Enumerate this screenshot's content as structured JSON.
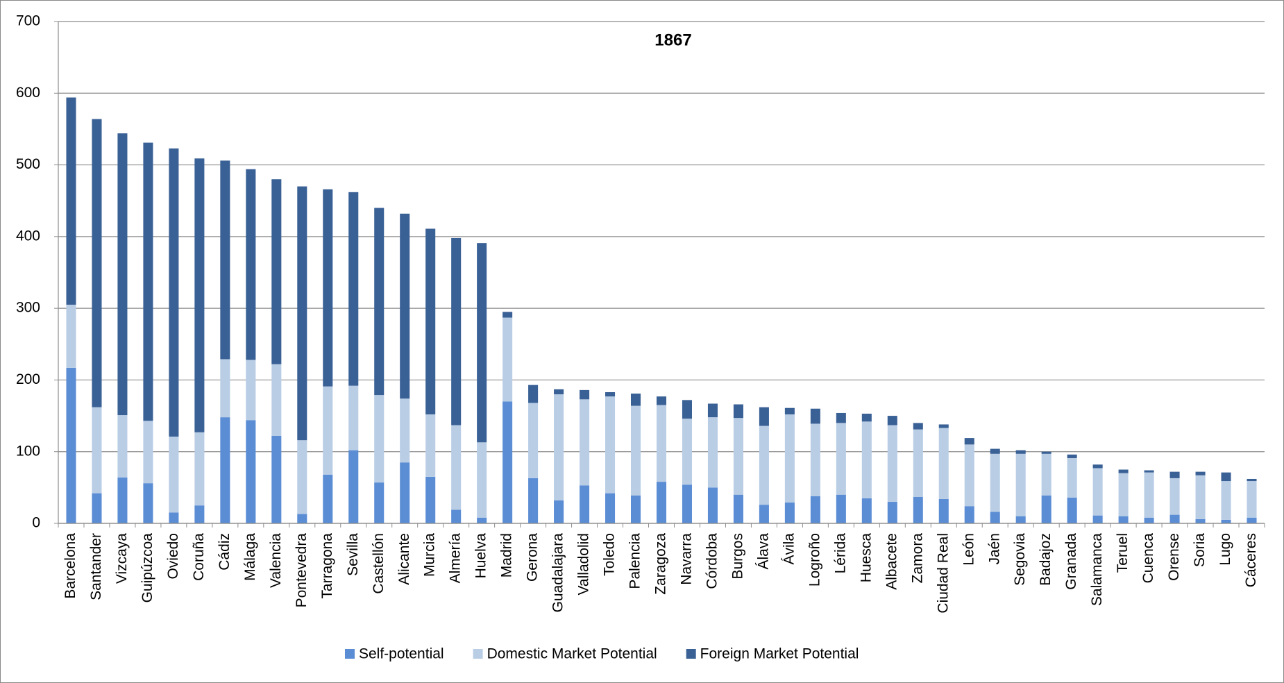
{
  "chart_data": {
    "type": "stacked_bar",
    "title": "1867",
    "categories": [
      "Barcelona",
      "Santander",
      "Vizcaya",
      "Guipúzcoa",
      "Oviedo",
      "Coruña",
      "Cádiz",
      "Málaga",
      "Valencia",
      "Pontevedra",
      "Tarragona",
      "Sevilla",
      "Castellón",
      "Alicante",
      "Murcia",
      "Almería",
      "Huelva",
      "Madrid",
      "Gerona",
      "Guadalajara",
      "Valladolid",
      "Toledo",
      "Palencia",
      "Zaragoza",
      "Navarra",
      "Córdoba",
      "Burgos",
      "Álava",
      "Ávila",
      "Logroño",
      "Lérida",
      "Huesca",
      "Albacete",
      "Zamora",
      "Ciudad Real",
      "León",
      "Jaén",
      "Segovia",
      "Badajoz",
      "Granada",
      "Salamanca",
      "Teruel",
      "Cuenca",
      "Orense",
      "Soria",
      "Lugo",
      "Cáceres"
    ],
    "series": [
      {
        "name": "Self-potential",
        "color": "#5b8dd5",
        "values": [
          217,
          42,
          64,
          56,
          15,
          25,
          148,
          144,
          122,
          13,
          68,
          102,
          57,
          85,
          65,
          19,
          8,
          170,
          63,
          32,
          53,
          42,
          39,
          58,
          54,
          50,
          40,
          26,
          29,
          38,
          40,
          35,
          30,
          37,
          34,
          24,
          16,
          10,
          39,
          36,
          11,
          10,
          8,
          12,
          6,
          5,
          8
        ]
      },
      {
        "name": "Domestic Market Potential",
        "color": "#b9cde5",
        "values": [
          88,
          120,
          87,
          87,
          106,
          102,
          81,
          84,
          100,
          103,
          123,
          90,
          122,
          89,
          87,
          118,
          105,
          117,
          105,
          148,
          120,
          135,
          125,
          107,
          92,
          98,
          107,
          110,
          123,
          101,
          100,
          107,
          107,
          94,
          99,
          86,
          81,
          87,
          58,
          55,
          66,
          60,
          63,
          51,
          61,
          54,
          51
        ]
      },
      {
        "name": "Foreign Market Potential",
        "color": "#3a6196",
        "values": [
          289,
          402,
          393,
          388,
          402,
          382,
          277,
          266,
          258,
          354,
          275,
          270,
          261,
          258,
          259,
          261,
          278,
          8,
          25,
          7,
          13,
          6,
          17,
          12,
          26,
          19,
          19,
          26,
          9,
          21,
          14,
          11,
          13,
          9,
          5,
          9,
          7,
          5,
          3,
          5,
          5,
          5,
          3,
          9,
          5,
          12,
          3
        ]
      }
    ],
    "ylim": [
      0,
      700
    ],
    "yticks": [
      0,
      100,
      200,
      300,
      400,
      500,
      600,
      700
    ],
    "grid": true
  }
}
